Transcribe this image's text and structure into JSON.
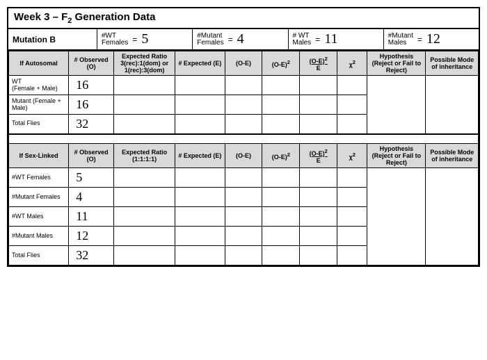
{
  "title_html": "Week 3 – F<sub>2</sub> Generation Data",
  "mutation_label": "Mutation B",
  "summary": {
    "wt_females": {
      "label_html": "#WT<br>Females",
      "eq": "=",
      "val": "5"
    },
    "mut_females": {
      "label_html": "#Mutant<br>Females",
      "eq": "=",
      "val": "4"
    },
    "wt_males": {
      "label_html": "# WT<br>Males",
      "eq": "=",
      "val": "11"
    },
    "mut_males": {
      "label_html": "#Mutant<br>Males",
      "eq": "=",
      "val": "12"
    }
  },
  "headersA": {
    "c1": "If Autosomal",
    "c2": "# Observed (O)",
    "c3": "Expected Ratio 3(rec):1(dom) or 1(rec):3(dom)",
    "c4": "# Expected (E)",
    "c5": "(O-E)",
    "c6_html": "(O-E)<sup>2</sup>",
    "c7_html": "<u>(O-E)<sup>2</sup></u><br>E",
    "c8_html": "χ<sup>2</sup>",
    "c9": "Hypothesis (Reject or Fail to Reject)",
    "c10": "Possible Mode of inheritance"
  },
  "rowsA": [
    {
      "label_html": "WT<br>(Female + Male)",
      "obs": "16"
    },
    {
      "label_html": "Mutant (Female + Male)",
      "obs": "16"
    },
    {
      "label_html": "Total Flies",
      "obs": "32"
    }
  ],
  "headersB": {
    "c1": "If Sex-Linked",
    "c2": "# Observed (O)",
    "c3": "Expected Ratio (1:1:1:1)",
    "c4": "# Expected (E)",
    "c5": "(O-E)",
    "c6_html": "(O-E)<sup>2</sup>",
    "c7_html": "<u>(O-E)<sup>2</sup></u><br>E",
    "c8_html": "χ<sup>2</sup>",
    "c9": "Hypothesis (Reject or Fail to Reject)",
    "c10": "Possible Mode of inheritance"
  },
  "rowsB": [
    {
      "label": "#WT Females",
      "obs": "5"
    },
    {
      "label": "#Mutant Females",
      "obs": "4"
    },
    {
      "label": "#WT Males",
      "obs": "11"
    },
    {
      "label": "#Mutant Males",
      "obs": "12"
    },
    {
      "label": "Total Flies",
      "obs": "32"
    }
  ],
  "colors": {
    "header_bg": "#d9d9d9",
    "border": "#000000",
    "bg": "#ffffff"
  }
}
